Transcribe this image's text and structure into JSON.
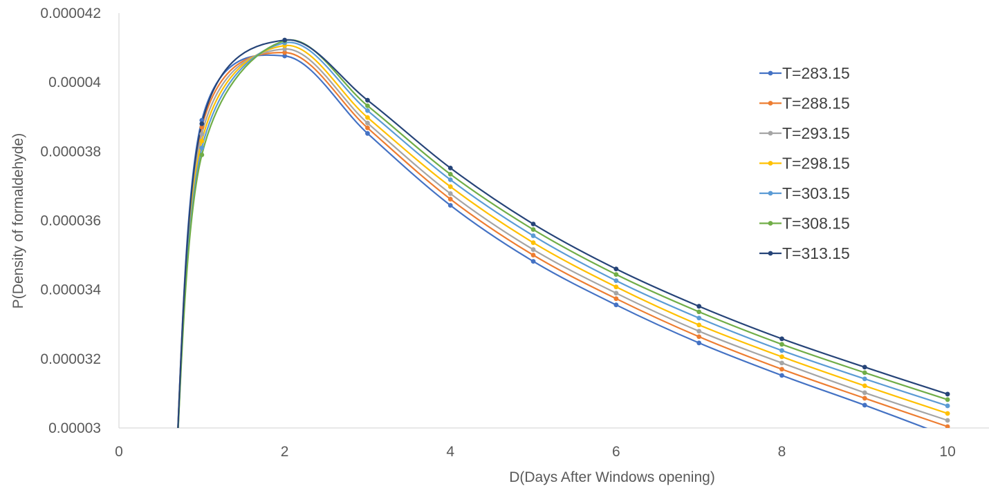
{
  "chart_data": {
    "type": "line",
    "title": "",
    "xlabel": "D(Days After Windows opening)",
    "ylabel": "P(Density of  formaldehyde)",
    "xlim": [
      0,
      10.5
    ],
    "ylim": [
      3e-05,
      4.2e-05
    ],
    "xticks": [
      0,
      2,
      4,
      6,
      8,
      10
    ],
    "xtick_labels": [
      "0",
      "2",
      "4",
      "6",
      "8",
      "10"
    ],
    "yticks": [
      3e-05,
      3.2e-05,
      3.4e-05,
      3.6e-05,
      3.8e-05,
      4e-05,
      4.2e-05
    ],
    "ytick_labels": [
      "0.00003",
      "0.000032",
      "0.000034",
      "0.000036",
      "0.000038",
      "0.00004",
      "0.000042"
    ],
    "grid": false,
    "smooth": true,
    "legend_position": "right",
    "x": [
      1,
      2,
      3,
      4,
      5,
      6,
      7,
      8,
      9,
      10
    ],
    "series": [
      {
        "name": "T=283.15",
        "color": "#4472C4",
        "values": [
          3.89e-05,
          4.076e-05,
          3.852e-05,
          3.644e-05,
          3.482e-05,
          3.356e-05,
          3.246e-05,
          3.152e-05,
          3.066e-05,
          2.976e-05
        ]
      },
      {
        "name": "T=288.15",
        "color": "#ED7D31",
        "values": [
          3.87e-05,
          4.086e-05,
          3.868e-05,
          3.662e-05,
          3.5e-05,
          3.374e-05,
          3.264e-05,
          3.17e-05,
          3.086e-05,
          3.004e-05
        ]
      },
      {
        "name": "T=293.15",
        "color": "#A5A5A5",
        "values": [
          3.85e-05,
          4.096e-05,
          3.882e-05,
          3.678e-05,
          3.516e-05,
          3.39e-05,
          3.28e-05,
          3.188e-05,
          3.102e-05,
          3.022e-05
        ]
      },
      {
        "name": "T=298.15",
        "color": "#FFC000",
        "values": [
          3.83e-05,
          4.106e-05,
          3.898e-05,
          3.698e-05,
          3.536e-05,
          3.408e-05,
          3.298e-05,
          3.206e-05,
          3.122e-05,
          3.042e-05
        ]
      },
      {
        "name": "T=303.15",
        "color": "#5B9BD5",
        "values": [
          3.81e-05,
          4.114e-05,
          3.918e-05,
          3.718e-05,
          3.556e-05,
          3.426e-05,
          3.318e-05,
          3.224e-05,
          3.142e-05,
          3.064e-05
        ]
      },
      {
        "name": "T=308.15",
        "color": "#70AD47",
        "values": [
          3.79e-05,
          4.12e-05,
          3.932e-05,
          3.734e-05,
          3.574e-05,
          3.444e-05,
          3.336e-05,
          3.242e-05,
          3.16e-05,
          3.082e-05
        ]
      },
      {
        "name": "T=313.15",
        "color": "#264478",
        "values": [
          3.88e-05,
          4.122e-05,
          3.948e-05,
          3.752e-05,
          3.59e-05,
          3.46e-05,
          3.352e-05,
          3.258e-05,
          3.176e-05,
          3.098e-05
        ]
      }
    ]
  }
}
